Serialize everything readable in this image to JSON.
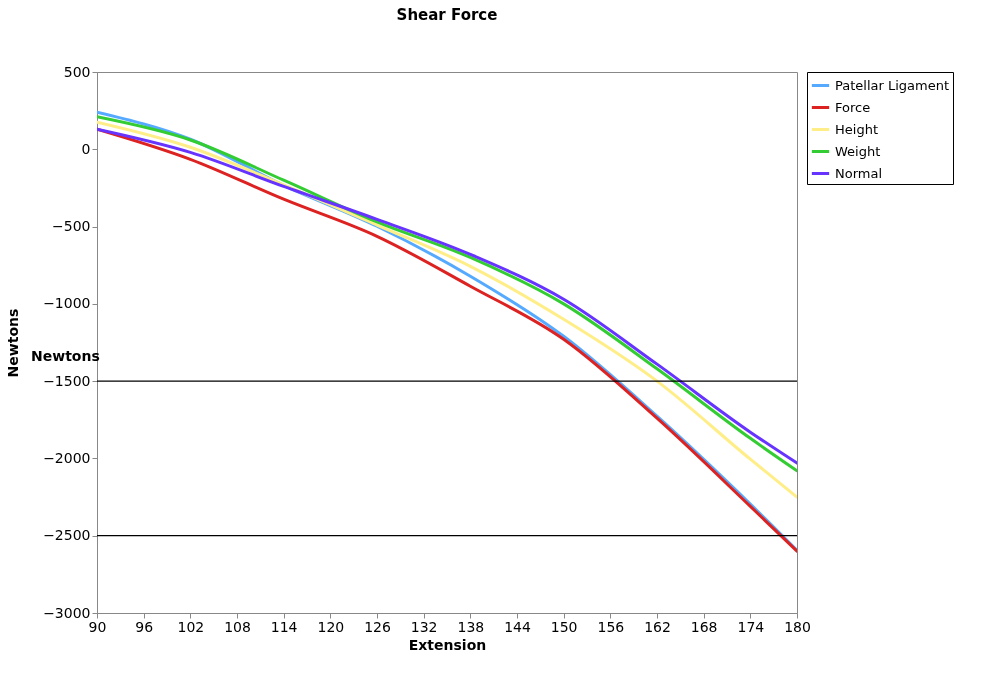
{
  "chart_data": {
    "type": "line",
    "title": "Shear Force",
    "xlabel": "Extension",
    "ylabel": "Newtons",
    "x": [
      90,
      102,
      114,
      126,
      138,
      150,
      162,
      174,
      180
    ],
    "series": [
      {
        "name": "Patellar Ligament",
        "color": "#55aaff",
        "values": [
          240,
          65,
          -233,
          -498,
          -821,
          -1210,
          -1727,
          -2296,
          -2594
        ]
      },
      {
        "name": "Force",
        "color": "#dd2222",
        "values": [
          130,
          -65,
          -323,
          -563,
          -886,
          -1229,
          -1740,
          -2310,
          -2600
        ]
      },
      {
        "name": "Height",
        "color": "#ffee88",
        "values": [
          175,
          13,
          -230,
          -490,
          -757,
          -1100,
          -1500,
          -2005,
          -2250
        ]
      },
      {
        "name": "Weight",
        "color": "#33cc33",
        "values": [
          210,
          60,
          -200,
          -470,
          -700,
          -1000,
          -1420,
          -1870,
          -2080
        ]
      },
      {
        "name": "Normal",
        "color": "#6633ff",
        "values": [
          130,
          -20,
          -240,
          -453,
          -680,
          -970,
          -1390,
          -1830,
          -2030
        ]
      }
    ],
    "xlim": [
      90,
      180
    ],
    "xticks": [
      90,
      96,
      102,
      108,
      114,
      120,
      126,
      132,
      138,
      144,
      150,
      156,
      162,
      168,
      174,
      180
    ],
    "ylim": [
      -3000,
      500
    ],
    "yticks": [
      -3000,
      -2500,
      -2000,
      -1500,
      -1000,
      -500,
      0,
      500
    ],
    "grid": false,
    "legend": "right",
    "marker": "none",
    "line_style": "solid",
    "ref_lines": [
      {
        "axis": "y",
        "value": -1500,
        "color": "#000000"
      },
      {
        "axis": "y",
        "value": -2500,
        "color": "#000000"
      }
    ],
    "annotations": [
      "Newtons"
    ]
  }
}
